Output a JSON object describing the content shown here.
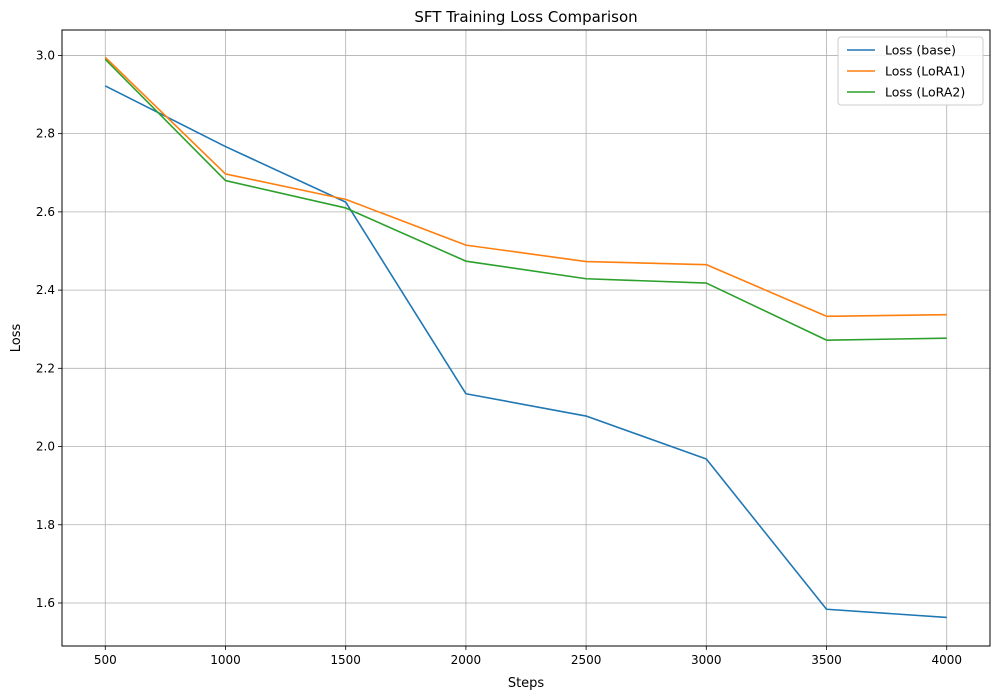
{
  "chart_data": {
    "type": "line",
    "title": "SFT Training Loss Comparison",
    "xlabel": "Steps",
    "ylabel": "Loss",
    "x": [
      500,
      1000,
      1500,
      2000,
      2500,
      3000,
      3500,
      4000
    ],
    "xlim": [
      320,
      4180
    ],
    "ylim": [
      1.49,
      3.065
    ],
    "xticks": [
      "500",
      "1000",
      "1500",
      "2000",
      "2500",
      "3000",
      "3500",
      "4000"
    ],
    "yticks": [
      "1.6",
      "1.8",
      "2.0",
      "2.2",
      "2.4",
      "2.6",
      "2.8",
      "3.0"
    ],
    "grid": true,
    "legend_position": "top-right",
    "series": [
      {
        "name": "Loss (base)",
        "color": "#1f77b4",
        "values": [
          2.922,
          2.767,
          2.625,
          2.135,
          2.078,
          1.968,
          1.584,
          1.563
        ]
      },
      {
        "name": "Loss (LoRA1)",
        "color": "#ff7f0e",
        "values": [
          2.995,
          2.697,
          2.632,
          2.515,
          2.473,
          2.465,
          2.333,
          2.337
        ]
      },
      {
        "name": "Loss (LoRA2)",
        "color": "#2ca02c",
        "values": [
          2.99,
          2.68,
          2.61,
          2.474,
          2.429,
          2.418,
          2.272,
          2.277
        ]
      }
    ]
  }
}
